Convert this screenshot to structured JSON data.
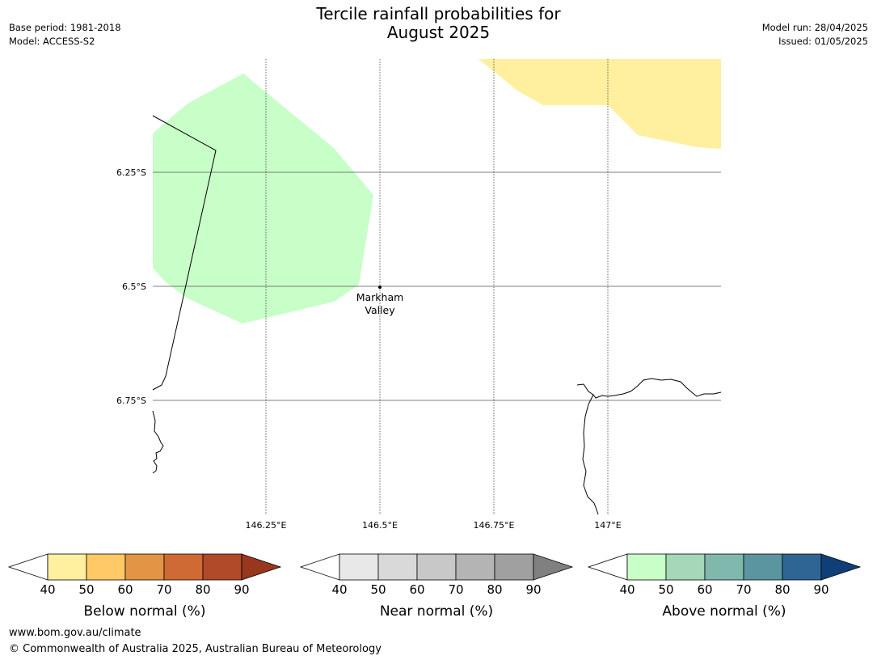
{
  "header": {
    "title_line1": "Tercile rainfall probabilities for",
    "title_line2": "August 2025",
    "base_period": "Base period: 1981-2018",
    "model": "Model: ACCESS-S2",
    "model_run": "Model run: 28/04/2025",
    "issued": "Issued: 01/05/2025"
  },
  "map": {
    "lat_labels": [
      "6.25°S",
      "6.5°S",
      "6.75°S"
    ],
    "lon_labels": [
      "146.25°E",
      "146.5°E",
      "146.75°E",
      "147°E"
    ],
    "place": {
      "line1": "Markham",
      "line2": "Valley"
    },
    "colors": {
      "below_40_50": "#fff0a0",
      "above_40_50": "#c8ffc8",
      "grid": "#555555",
      "coast": "#000000"
    }
  },
  "legends": [
    {
      "label": "Below normal (%)",
      "ticks": [
        "40",
        "50",
        "60",
        "70",
        "80",
        "90"
      ],
      "colors": [
        "#fff0a0",
        "#ffc965",
        "#e39444",
        "#d06a35",
        "#b04a28",
        "#98361e"
      ]
    },
    {
      "label": "Near normal (%)",
      "ticks": [
        "40",
        "50",
        "60",
        "70",
        "80",
        "90"
      ],
      "colors": [
        "#e8e8e8",
        "#d9d9d9",
        "#c8c8c8",
        "#b4b4b4",
        "#a0a0a0",
        "#808080"
      ]
    },
    {
      "label": "Above normal (%)",
      "ticks": [
        "40",
        "50",
        "60",
        "70",
        "80",
        "90"
      ],
      "colors": [
        "#c8ffc8",
        "#a4d8b8",
        "#80b8ae",
        "#5b95a0",
        "#2f6595",
        "#103f78"
      ]
    }
  ],
  "footer": {
    "url": "www.bom.gov.au/climate",
    "copyright": "© Commonwealth of Australia 2025, Australian Bureau of Meteorology"
  }
}
